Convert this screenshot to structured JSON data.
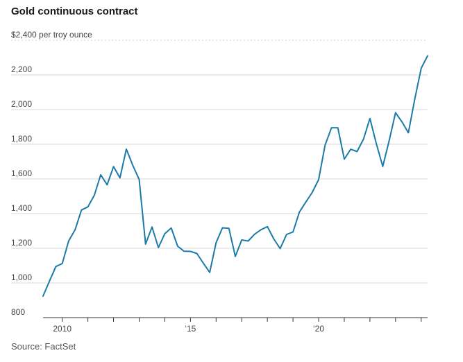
{
  "chart_data": {
    "type": "line",
    "title": "Gold continuous contract",
    "unit_label": "per troy ounce",
    "ylabel": "$ per troy ounce",
    "xlabel": "",
    "y_ticks": [
      800,
      1000,
      1200,
      1400,
      1600,
      1800,
      2000,
      2200,
      2400
    ],
    "y_tick_labels": [
      "800",
      "1,000",
      "1,200",
      "1,400",
      "1,600",
      "1,800",
      "2,000",
      "2,200",
      "$2,400"
    ],
    "ylim": [
      800,
      2400
    ],
    "xlim": [
      2009.25,
      2024.25
    ],
    "x_ticks": [
      2010,
      2011,
      2012,
      2013,
      2014,
      2015,
      2016,
      2017,
      2018,
      2019,
      2020,
      2021,
      2022,
      2023,
      2024
    ],
    "x_tick_labels": [
      {
        "year": 2010,
        "label": "2010"
      },
      {
        "year": 2015,
        "label": "‘15"
      },
      {
        "year": 2020,
        "label": "‘20"
      }
    ],
    "series": [
      {
        "name": "Gold continuous contract",
        "color": "#1a7aa8",
        "x": [
          2009.25,
          2009.5,
          2009.75,
          2010.0,
          2010.25,
          2010.5,
          2010.75,
          2011.0,
          2011.25,
          2011.5,
          2011.75,
          2012.0,
          2012.25,
          2012.5,
          2012.75,
          2013.0,
          2013.25,
          2013.5,
          2013.75,
          2014.0,
          2014.25,
          2014.5,
          2014.75,
          2015.0,
          2015.25,
          2015.5,
          2015.75,
          2016.0,
          2016.25,
          2016.5,
          2016.75,
          2017.0,
          2017.25,
          2017.5,
          2017.75,
          2018.0,
          2018.25,
          2018.5,
          2018.75,
          2019.0,
          2019.25,
          2019.5,
          2019.75,
          2020.0,
          2020.25,
          2020.5,
          2020.75,
          2021.0,
          2021.25,
          2021.5,
          2021.75,
          2022.0,
          2022.25,
          2022.5,
          2022.75,
          2023.0,
          2023.25,
          2023.5,
          2023.75,
          2024.0,
          2024.25
        ],
        "values": [
          924,
          1010,
          1095,
          1112,
          1242,
          1307,
          1421,
          1439,
          1506,
          1624,
          1566,
          1671,
          1606,
          1772,
          1678,
          1597,
          1224,
          1323,
          1204,
          1284,
          1317,
          1212,
          1183,
          1182,
          1170,
          1115,
          1061,
          1232,
          1318,
          1315,
          1153,
          1248,
          1242,
          1281,
          1307,
          1325,
          1254,
          1198,
          1280,
          1294,
          1409,
          1467,
          1522,
          1596,
          1795,
          1895,
          1895,
          1714,
          1771,
          1758,
          1830,
          1949,
          1804,
          1672,
          1820,
          1982,
          1929,
          1866,
          2060,
          2239,
          2310
        ]
      }
    ],
    "grid": true,
    "legend": "none"
  },
  "footer": {
    "source": "Source: FactSet"
  }
}
